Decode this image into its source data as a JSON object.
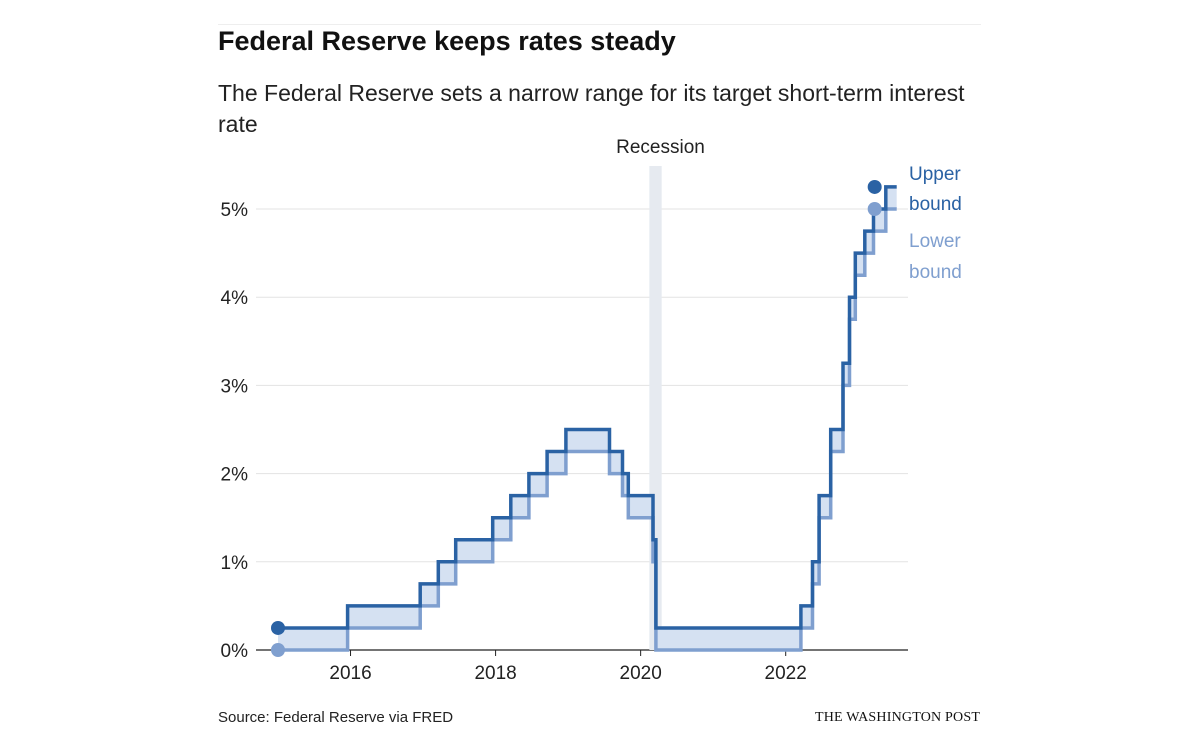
{
  "header": {
    "title": "Federal Reserve keeps rates steady",
    "subtitle": "The Federal Reserve sets a narrow range for its target short-term interest rate"
  },
  "footer": {
    "source": "Source: Federal Reserve via FRED",
    "credit": "THE WASHINGTON POST"
  },
  "colors": {
    "upper": "#2a62a4",
    "lower": "#7f9fcf",
    "fill": "#d5e1f2",
    "recession": "#e6eaf0",
    "grid": "#e3e3e3"
  },
  "chart_data": {
    "type": "line",
    "title": "Federal Reserve keeps rates steady",
    "subtitle": "The Federal Reserve sets a narrow range for its target short-term interest rate",
    "xlabel": "",
    "ylabel": "",
    "x_range": [
      2015.0,
      2023.7
    ],
    "ylim": [
      0,
      5.5
    ],
    "y_ticks": [
      0,
      1,
      2,
      3,
      4,
      5
    ],
    "y_tick_labels": [
      "0%",
      "1%",
      "2%",
      "3%",
      "4%",
      "5%"
    ],
    "x_ticks": [
      2016,
      2018,
      2020,
      2022
    ],
    "x_tick_labels": [
      "2016",
      "2018",
      "2020",
      "2022"
    ],
    "grid": true,
    "step": true,
    "recession": {
      "label": "Recession",
      "start": 2020.12,
      "end": 2020.29
    },
    "series": [
      {
        "name": "Upper bound",
        "x": [
          2015.0,
          2015.96,
          2016.96,
          2017.21,
          2017.45,
          2017.96,
          2018.21,
          2018.46,
          2018.71,
          2018.97,
          2019.57,
          2019.75,
          2019.83,
          2020.17,
          2020.21,
          2022.21,
          2022.37,
          2022.46,
          2022.62,
          2022.79,
          2022.88,
          2022.96,
          2023.09,
          2023.21,
          2023.38,
          2023.53
        ],
        "values": [
          0.25,
          0.5,
          0.75,
          1.0,
          1.25,
          1.5,
          1.75,
          2.0,
          2.25,
          2.5,
          2.25,
          2.0,
          1.75,
          1.25,
          0.25,
          0.5,
          1.0,
          1.75,
          2.5,
          3.25,
          4.0,
          4.5,
          4.75,
          5.0,
          5.25,
          5.25
        ]
      },
      {
        "name": "Lower bound",
        "x": [
          2015.0,
          2015.96,
          2016.96,
          2017.21,
          2017.45,
          2017.96,
          2018.21,
          2018.46,
          2018.71,
          2018.97,
          2019.57,
          2019.75,
          2019.83,
          2020.17,
          2020.21,
          2022.21,
          2022.37,
          2022.46,
          2022.62,
          2022.79,
          2022.88,
          2022.96,
          2023.09,
          2023.21,
          2023.38,
          2023.53
        ],
        "values": [
          0.0,
          0.25,
          0.5,
          0.75,
          1.0,
          1.25,
          1.5,
          1.75,
          2.0,
          2.25,
          2.0,
          1.75,
          1.5,
          1.0,
          0.0,
          0.25,
          0.75,
          1.5,
          2.25,
          3.0,
          3.75,
          4.25,
          4.5,
          4.75,
          5.0,
          5.0
        ]
      }
    ],
    "legend": [
      {
        "label_line1": "Upper",
        "label_line2": "bound"
      },
      {
        "label_line1": "Lower",
        "label_line2": "bound"
      }
    ]
  }
}
